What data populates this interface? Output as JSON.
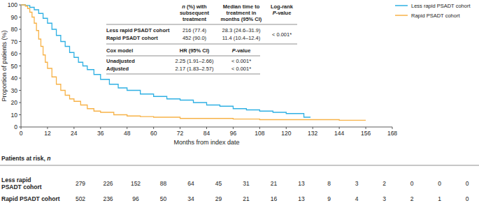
{
  "chart_data": {
    "type": "line",
    "x_label": "Months from index date",
    "y_label": "Proportion of patients (%)",
    "xlim": [
      0,
      168
    ],
    "xticks": [
      0,
      12,
      24,
      36,
      48,
      60,
      72,
      84,
      96,
      108,
      120,
      132,
      144,
      156,
      168
    ],
    "ylim": [
      0,
      100
    ],
    "yticks": [
      0,
      10,
      20,
      30,
      40,
      50,
      60,
      70,
      80,
      90,
      100
    ],
    "grid": false,
    "legend": "top-right",
    "series": [
      {
        "name": "Less rapid PSADT cohort",
        "color": "#2fb0e3",
        "line_style": "step",
        "x": [
          0,
          2,
          4,
          6,
          8,
          10,
          12,
          14,
          16,
          18,
          20,
          22,
          24,
          26,
          28,
          30,
          33,
          36,
          40,
          44,
          48,
          54,
          60,
          66,
          72,
          78,
          84,
          90,
          96,
          102,
          108,
          114,
          120,
          126,
          128,
          131
        ],
        "values": [
          100,
          99.5,
          98,
          96,
          93,
          89,
          85,
          80,
          75,
          70,
          66,
          61,
          57,
          53,
          50,
          47,
          43,
          39,
          35,
          32,
          30,
          27,
          25,
          23,
          22,
          20,
          18,
          17,
          15,
          14,
          13,
          12,
          11,
          11,
          8,
          8
        ]
      },
      {
        "name": "Rapid PSADT cohort",
        "color": "#f7b247",
        "line_style": "step",
        "x": [
          0,
          2,
          3,
          4,
          5,
          6,
          7,
          8,
          9,
          10,
          11,
          12,
          14,
          16,
          18,
          20,
          22,
          24,
          27,
          30,
          33,
          36,
          42,
          48,
          54,
          60,
          72,
          84,
          96,
          108,
          120,
          132,
          144,
          156
        ],
        "values": [
          100,
          99,
          97,
          94,
          90,
          85,
          79,
          72,
          66,
          59,
          53,
          48,
          41,
          35,
          30,
          26,
          23,
          21,
          18,
          15,
          13,
          12,
          10,
          9,
          8.5,
          8,
          7,
          7,
          6.5,
          6,
          6,
          6,
          5.5,
          5.5
        ]
      }
    ]
  },
  "summary_table": {
    "header": [
      [
        "n (%) with",
        "subsequent",
        "treatment"
      ],
      [
        "Median time to",
        "treatment in",
        "months (95% CI)"
      ],
      [
        "Log-rank",
        "P-value"
      ]
    ],
    "rows": [
      [
        "Less rapid PSADT cohort",
        "216 (77.4)",
        "28.3 (24.6–31.9)"
      ],
      [
        "Rapid PSADT cohort",
        "452 (90.0)",
        "11.4 (10.4–12.4)"
      ]
    ],
    "log_rank_p": "< 0.001*"
  },
  "cox_table": {
    "header": [
      "Cox model",
      "HR (95% CI)",
      "P-value"
    ],
    "rows": [
      [
        "Unadjusted",
        "2.25 (1.91–2.66)",
        "< 0.001*"
      ],
      [
        "Adjusted",
        "2.17 (1.83–2.57)",
        "< 0.001*"
      ]
    ]
  },
  "risk_table": {
    "title": "Patients at risk, n",
    "rows": [
      {
        "label": [
          "Less rapid",
          "PSADT cohort"
        ],
        "values": [
          279,
          226,
          152,
          88,
          64,
          45,
          31,
          21,
          13,
          8,
          3,
          2,
          0,
          0,
          0
        ]
      },
      {
        "label": [
          "Rapid PSADT cohort"
        ],
        "values": [
          502,
          236,
          96,
          50,
          34,
          29,
          21,
          16,
          13,
          9,
          4,
          3,
          2,
          1,
          0
        ]
      }
    ]
  }
}
